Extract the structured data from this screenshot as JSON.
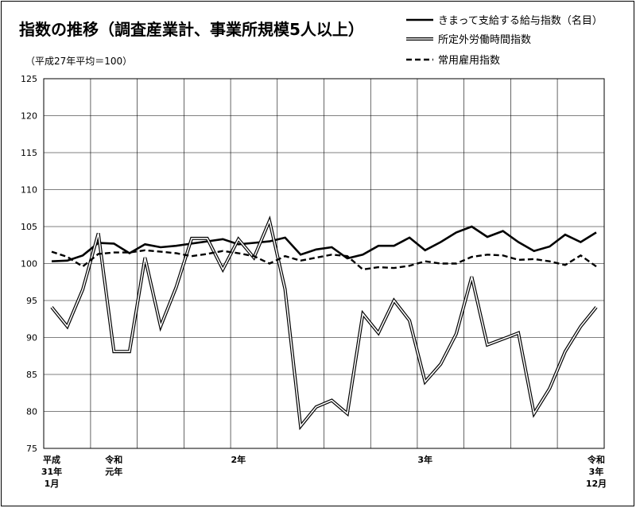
{
  "chart_data": {
    "type": "line",
    "title": "指数の推移（調査産業計、事業所規模5人以上）",
    "subtitle": "（平成27年平均＝100）",
    "ylim": [
      75,
      125
    ],
    "yticks": [
      75,
      80,
      85,
      90,
      95,
      100,
      105,
      110,
      115,
      120,
      125
    ],
    "grid": true,
    "legend_position": "top-right",
    "x_tick_labels": [
      {
        "index": 0,
        "lines": [
          "平成",
          "31年",
          "1月"
        ]
      },
      {
        "index": 4,
        "lines": [
          "令和",
          "元年"
        ]
      },
      {
        "index": 12,
        "lines": [
          "2年"
        ]
      },
      {
        "index": 24,
        "lines": [
          "3年"
        ]
      },
      {
        "index": 35,
        "lines": [
          "令和",
          "3年",
          "12月"
        ]
      }
    ],
    "series": [
      {
        "name": "きまって支給する給与指数（名目）",
        "style": "solid",
        "values": [
          100.3,
          100.4,
          101.1,
          102.8,
          102.7,
          101.4,
          102.6,
          102.2,
          102.4,
          102.7,
          103.0,
          103.3,
          102.6,
          102.8,
          103.0,
          103.5,
          101.2,
          101.9,
          102.2,
          100.7,
          101.2,
          102.4,
          102.4,
          103.5,
          101.8,
          102.9,
          104.2,
          105.0,
          103.6,
          104.4,
          102.9,
          101.7,
          102.3,
          103.9,
          102.9,
          104.2
        ]
      },
      {
        "name": "所定外労働時間指数",
        "style": "double",
        "values": [
          94.1,
          91.5,
          96.5,
          104.1,
          88.1,
          88.1,
          100.8,
          91.5,
          96.8,
          103.4,
          103.4,
          99.2,
          103.3,
          100.8,
          105.8,
          96.5,
          78.0,
          80.6,
          81.5,
          79.7,
          93.2,
          90.6,
          95.0,
          92.3,
          84.0,
          86.4,
          90.5,
          98.2,
          89.0,
          89.8,
          90.6,
          79.7,
          83.1,
          88.1,
          91.5,
          94.1
        ]
      },
      {
        "name": "常用雇用指数",
        "style": "dashed",
        "values": [
          101.6,
          100.9,
          99.6,
          101.3,
          101.5,
          101.5,
          101.8,
          101.6,
          101.4,
          101.0,
          101.3,
          101.7,
          101.4,
          101.0,
          100.0,
          101.0,
          100.4,
          100.8,
          101.2,
          101.0,
          99.2,
          99.5,
          99.4,
          99.7,
          100.3,
          100.0,
          100.0,
          100.9,
          101.2,
          101.1,
          100.5,
          100.6,
          100.3,
          99.8,
          101.1,
          99.6
        ]
      }
    ]
  }
}
